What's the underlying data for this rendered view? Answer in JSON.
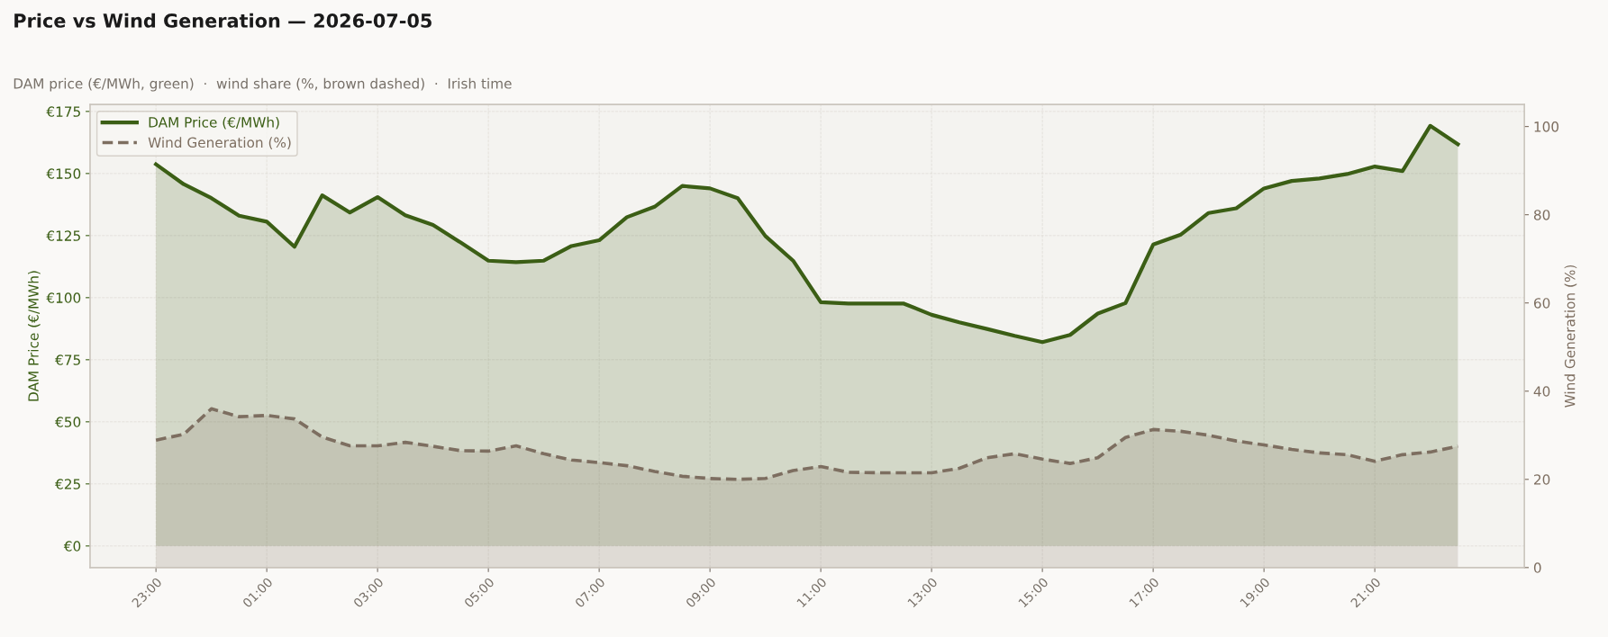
{
  "chart_data": {
    "type": "area",
    "title": "Price vs Wind Generation — 2026-07-05",
    "subtitle": "DAM price (€/MWh, green)  ·  wind share (%, brown dashed)  ·  Irish time",
    "ylabel": "DAM Price (€/MWh)",
    "y2label": "Wind Generation (%)",
    "categories": [
      "23:00",
      null,
      null,
      null,
      "01:00",
      null,
      null,
      null,
      "03:00",
      null,
      null,
      null,
      "05:00",
      null,
      null,
      null,
      "07:00",
      null,
      null,
      null,
      "09:00",
      null,
      null,
      null,
      "11:00",
      null,
      null,
      null,
      "13:00",
      null,
      null,
      null,
      "15:00",
      null,
      null,
      null,
      "17:00",
      null,
      null,
      null,
      "19:00",
      null,
      null,
      null,
      "21:00",
      null,
      null,
      null
    ],
    "series": [
      {
        "name": "DAM Price (€/MWh)",
        "color": "#3b5e15",
        "line_style": "solid",
        "values": [
          153.7,
          145.7,
          140.1,
          133.0,
          130.6,
          120.5,
          141.2,
          134.3,
          140.5,
          133.2,
          129.3,
          122.2,
          114.9,
          114.3,
          114.9,
          120.8,
          123.1,
          132.4,
          136.6,
          145.0,
          144.0,
          140.1,
          124.8,
          114.9,
          98.2,
          97.6,
          97.6,
          97.6,
          93.1,
          90.1,
          87.4,
          84.6,
          82.1,
          85.0,
          93.6,
          97.8,
          121.4,
          125.4,
          134.1,
          136.0,
          144.0,
          147.0,
          148.0,
          149.8,
          152.8,
          151.0,
          169.2,
          161.8
        ]
      },
      {
        "name": "Wind Generation (%)",
        "color": "#7d6e60",
        "axis": "y2",
        "line_style": "dashed",
        "values": [
          28.9,
          30.2,
          36.0,
          34.2,
          34.5,
          33.7,
          29.6,
          27.6,
          27.6,
          28.4,
          27.5,
          26.5,
          26.4,
          27.6,
          25.8,
          24.4,
          23.8,
          23.1,
          21.8,
          20.7,
          20.2,
          20.0,
          20.2,
          22.0,
          22.9,
          21.6,
          21.5,
          21.5,
          21.5,
          22.5,
          24.9,
          25.8,
          24.6,
          23.6,
          24.9,
          29.5,
          31.3,
          30.9,
          30.0,
          28.7,
          27.8,
          26.8,
          26.0,
          25.6,
          24.1,
          25.6,
          26.2,
          27.5
        ]
      }
    ],
    "ylim": [
      -8.7,
      177.8
    ],
    "yticks": [
      {
        "value": 0,
        "label": "€0"
      },
      {
        "value": 25,
        "label": "€25"
      },
      {
        "value": 50,
        "label": "€50"
      },
      {
        "value": 75,
        "label": "€75"
      },
      {
        "value": 100,
        "label": "€100"
      },
      {
        "value": 125,
        "label": "€125"
      },
      {
        "value": 150,
        "label": "€150"
      },
      {
        "value": 175,
        "label": "€175"
      }
    ],
    "y2lim": [
      0,
      105
    ],
    "y2ticks": [
      0,
      20,
      40,
      60,
      80,
      100
    ],
    "grid": true,
    "legend": "top left",
    "marker": "none"
  }
}
